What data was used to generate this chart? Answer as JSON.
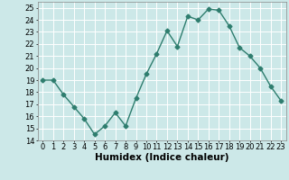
{
  "x": [
    0,
    1,
    2,
    3,
    4,
    5,
    6,
    7,
    8,
    9,
    10,
    11,
    12,
    13,
    14,
    15,
    16,
    17,
    18,
    19,
    20,
    21,
    22,
    23
  ],
  "y": [
    19,
    19,
    17.8,
    16.8,
    15.8,
    14.5,
    15.2,
    16.3,
    15.2,
    17.5,
    19.5,
    21.2,
    23.1,
    21.8,
    24.3,
    24.0,
    24.9,
    24.8,
    23.5,
    21.7,
    21.0,
    20.0,
    18.5,
    17.3
  ],
  "xlabel": "Humidex (Indice chaleur)",
  "xlim": [
    -0.5,
    23.5
  ],
  "ylim": [
    14,
    25.5
  ],
  "yticks": [
    14,
    15,
    16,
    17,
    18,
    19,
    20,
    21,
    22,
    23,
    24,
    25
  ],
  "xticks": [
    0,
    1,
    2,
    3,
    4,
    5,
    6,
    7,
    8,
    9,
    10,
    11,
    12,
    13,
    14,
    15,
    16,
    17,
    18,
    19,
    20,
    21,
    22,
    23
  ],
  "line_color": "#2e7d6e",
  "marker": "D",
  "marker_size": 2.5,
  "bg_color": "#cce8e8",
  "grid_color": "#ffffff",
  "line_width": 1.0,
  "tick_fontsize": 6.0,
  "xlabel_fontsize": 7.5
}
